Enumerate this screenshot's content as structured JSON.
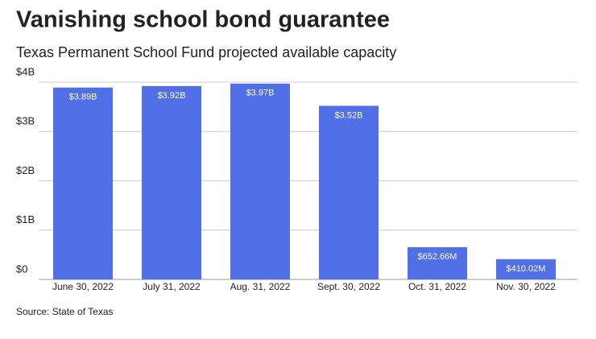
{
  "chart_data": {
    "type": "bar",
    "title": "Vanishing school bond guarantee",
    "subtitle": "Texas Permanent School Fund projected available capacity",
    "source": "Source: State of Texas",
    "categories": [
      "June 30, 2022",
      "July 31, 2022",
      "Aug. 31, 2022",
      "Sept. 30, 2022",
      "Oct. 31, 2022",
      "Nov. 30, 2022"
    ],
    "values": [
      3.89,
      3.92,
      3.97,
      3.52,
      0.65266,
      0.41002
    ],
    "value_labels": [
      "$3.89B",
      "$3.92B",
      "$3.97B",
      "$3.52B",
      "$652.66M",
      "$410.02M"
    ],
    "color": "#5170e8",
    "ylim": [
      0,
      4
    ],
    "yticks": [
      {
        "value": 0,
        "label": "$0"
      },
      {
        "value": 1,
        "label": "$1B"
      },
      {
        "value": 2,
        "label": "$2B"
      },
      {
        "value": 3,
        "label": "$3B"
      },
      {
        "value": 4,
        "label": "$4B"
      }
    ],
    "grid": true
  }
}
